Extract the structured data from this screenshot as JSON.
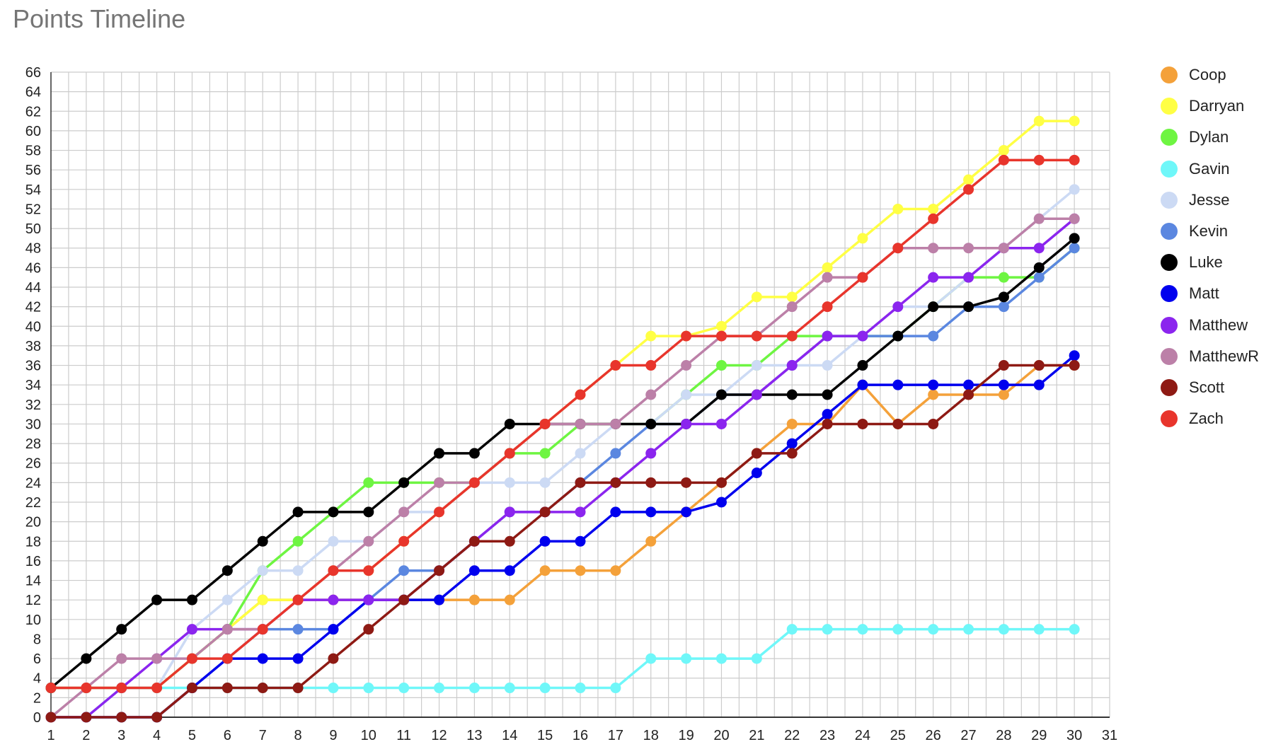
{
  "chart_data": {
    "type": "line",
    "title": "Points Timeline",
    "xlabel": "",
    "ylabel": "",
    "x": [
      1,
      2,
      3,
      4,
      5,
      6,
      7,
      8,
      9,
      10,
      11,
      12,
      13,
      14,
      15,
      16,
      17,
      18,
      19,
      20,
      21,
      22,
      23,
      24,
      25,
      26,
      27,
      28,
      29,
      30
    ],
    "x_ticks": [
      1,
      2,
      3,
      4,
      5,
      6,
      7,
      8,
      9,
      10,
      11,
      12,
      13,
      14,
      15,
      16,
      17,
      18,
      19,
      20,
      21,
      22,
      23,
      24,
      25,
      26,
      27,
      28,
      29,
      30,
      31
    ],
    "xlim": [
      1,
      31
    ],
    "ylim": [
      0,
      66
    ],
    "y_tick_step": 2,
    "grid": true,
    "legend_position": "right",
    "series": [
      {
        "name": "Coop",
        "color": "#f4a13a",
        "values": [
          3,
          3,
          3,
          3,
          6,
          9,
          12,
          12,
          12,
          12,
          12,
          12,
          12,
          12,
          15,
          15,
          15,
          18,
          21,
          24,
          27,
          30,
          30,
          34,
          30,
          33,
          33,
          33,
          36,
          36
        ]
      },
      {
        "name": "Darryan",
        "color": "#ffff44",
        "values": [
          3,
          3,
          3,
          3,
          6,
          9,
          12,
          12,
          15,
          15,
          18,
          21,
          24,
          27,
          30,
          33,
          36,
          39,
          39,
          40,
          43,
          43,
          46,
          49,
          52,
          52,
          55,
          58,
          61,
          61
        ]
      },
      {
        "name": "Dylan",
        "color": "#6ef542",
        "values": [
          3,
          3,
          3,
          3,
          6,
          9,
          15,
          18,
          21,
          24,
          24,
          24,
          24,
          27,
          27,
          30,
          30,
          30,
          33,
          36,
          36,
          39,
          39,
          39,
          39,
          42,
          45,
          45,
          45,
          48
        ]
      },
      {
        "name": "Gavin",
        "color": "#6ff7f9",
        "values": [
          0,
          0,
          3,
          3,
          3,
          3,
          3,
          3,
          3,
          3,
          3,
          3,
          3,
          3,
          3,
          3,
          3,
          6,
          6,
          6,
          6,
          9,
          9,
          9,
          9,
          9,
          9,
          9,
          9,
          9
        ]
      },
      {
        "name": "Jesse",
        "color": "#ccdaf4",
        "values": [
          3,
          3,
          3,
          3,
          9,
          12,
          15,
          15,
          18,
          18,
          21,
          21,
          24,
          24,
          24,
          27,
          30,
          30,
          33,
          33,
          36,
          36,
          36,
          39,
          42,
          42,
          45,
          48,
          51,
          54
        ]
      },
      {
        "name": "Kevin",
        "color": "#5b87e0",
        "values": [
          0,
          0,
          0,
          0,
          3,
          6,
          9,
          9,
          9,
          12,
          15,
          15,
          18,
          21,
          21,
          24,
          27,
          30,
          30,
          33,
          33,
          36,
          39,
          39,
          39,
          39,
          42,
          42,
          45,
          48
        ]
      },
      {
        "name": "Luke",
        "color": "#000000",
        "values": [
          3,
          6,
          9,
          12,
          12,
          15,
          18,
          21,
          21,
          21,
          24,
          27,
          27,
          30,
          30,
          30,
          30,
          30,
          30,
          33,
          33,
          33,
          33,
          36,
          39,
          42,
          42,
          43,
          46,
          49
        ]
      },
      {
        "name": "Matt",
        "color": "#0000ee",
        "values": [
          0,
          0,
          0,
          0,
          3,
          6,
          6,
          6,
          9,
          12,
          12,
          12,
          15,
          15,
          18,
          18,
          21,
          21,
          21,
          22,
          25,
          28,
          31,
          34,
          34,
          34,
          34,
          34,
          34,
          37
        ]
      },
      {
        "name": "Matthew",
        "color": "#8b25ee",
        "values": [
          0,
          0,
          3,
          6,
          9,
          9,
          9,
          12,
          12,
          12,
          12,
          15,
          18,
          21,
          21,
          21,
          24,
          27,
          30,
          30,
          33,
          36,
          39,
          39,
          42,
          45,
          45,
          48,
          48,
          51
        ]
      },
      {
        "name": "MatthewR",
        "color": "#bc80a8",
        "values": [
          0,
          3,
          6,
          6,
          6,
          9,
          9,
          12,
          15,
          18,
          21,
          24,
          24,
          27,
          30,
          30,
          30,
          33,
          36,
          39,
          39,
          42,
          45,
          45,
          48,
          48,
          48,
          48,
          51,
          51
        ]
      },
      {
        "name": "Scott",
        "color": "#8e1a14",
        "values": [
          0,
          0,
          0,
          0,
          3,
          3,
          3,
          3,
          6,
          9,
          12,
          15,
          18,
          18,
          21,
          24,
          24,
          24,
          24,
          24,
          27,
          27,
          30,
          30,
          30,
          30,
          33,
          36,
          36,
          36
        ]
      },
      {
        "name": "Zach",
        "color": "#e8352c",
        "values": [
          3,
          3,
          3,
          3,
          6,
          6,
          9,
          12,
          15,
          15,
          18,
          21,
          24,
          27,
          30,
          33,
          36,
          36,
          39,
          39,
          39,
          39,
          42,
          45,
          48,
          51,
          54,
          57,
          57,
          57
        ]
      }
    ]
  }
}
